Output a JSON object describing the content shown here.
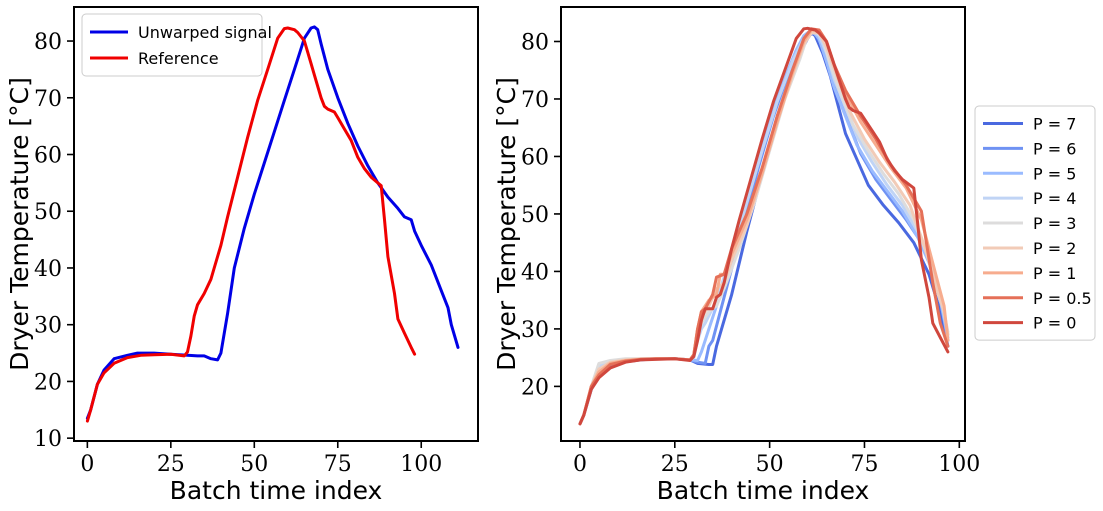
{
  "chart_data": [
    {
      "type": "line",
      "title": "",
      "xlabel": "Batch time index",
      "ylabel": "Dryer Temperature [°C]",
      "xlim": [
        -4,
        117
      ],
      "ylim": [
        9.5,
        86
      ],
      "xticks": [
        0,
        25,
        50,
        75,
        100
      ],
      "yticks": [
        10,
        20,
        30,
        40,
        50,
        60,
        70,
        80
      ],
      "grid": false,
      "legend_position": "top-left",
      "series": [
        {
          "name": "Unwarped signal",
          "color": "#0000e6",
          "x": [
            0,
            1,
            3,
            5,
            8,
            12,
            15,
            20,
            25,
            30,
            33,
            35,
            37,
            39,
            40,
            42,
            44,
            47,
            50,
            53,
            56,
            59,
            62,
            65,
            67,
            68,
            69,
            70,
            72,
            75,
            78,
            81,
            84,
            87,
            90,
            93,
            95,
            97,
            98,
            100,
            103,
            106,
            108,
            109,
            111
          ],
          "y": [
            13.5,
            15,
            19.5,
            22,
            24,
            24.6,
            25,
            25,
            24.8,
            24.6,
            24.5,
            24.5,
            24,
            23.8,
            25,
            32,
            40,
            47,
            53,
            58.5,
            64,
            69.5,
            75,
            80.5,
            82.3,
            82.5,
            82,
            79.5,
            75,
            70,
            65.5,
            61.5,
            58,
            55,
            52.5,
            50.5,
            49,
            48.5,
            46.5,
            44,
            40.5,
            36,
            33,
            30,
            26
          ]
        },
        {
          "name": "Reference",
          "color": "#f00000",
          "x": [
            0,
            1,
            3,
            5,
            8,
            12,
            16,
            20,
            25,
            29,
            30,
            31,
            32,
            33,
            35,
            37,
            38,
            40,
            42,
            45,
            48,
            51,
            54,
            57,
            59,
            60,
            62,
            63,
            65,
            67,
            68,
            70,
            71,
            72,
            74,
            75,
            77,
            79,
            81,
            83,
            85,
            87,
            88,
            89,
            90,
            92,
            93,
            95,
            97,
            98
          ],
          "y": [
            13,
            15,
            19.5,
            21.5,
            23.2,
            24.2,
            24.6,
            24.7,
            24.8,
            24.5,
            25.2,
            28,
            31.5,
            33.5,
            35.5,
            38,
            40,
            44,
            49,
            56,
            63,
            69.5,
            75,
            80.5,
            82.2,
            82.3,
            82,
            81.5,
            80,
            76,
            74,
            70,
            68.5,
            68,
            67.5,
            66.5,
            64.5,
            62.5,
            59.5,
            57.5,
            56,
            55,
            54.5,
            48.5,
            42,
            35.5,
            31,
            28.5,
            26,
            24.8
          ]
        }
      ]
    },
    {
      "type": "line",
      "title": "",
      "xlabel": "Batch time index",
      "ylabel": "Dryer Temperature [°C]",
      "xlim": [
        -5,
        101.5
      ],
      "ylim": [
        10.5,
        86
      ],
      "xticks": [
        0,
        25,
        50,
        75,
        100
      ],
      "yticks": [
        20,
        30,
        40,
        50,
        60,
        70,
        80
      ],
      "grid": false,
      "legend_position": "outside-right",
      "series": [
        {
          "name": "P = 7",
          "color": "#4a69e0",
          "x": [
            0,
            1,
            3,
            5,
            8,
            12,
            16,
            20,
            25,
            29,
            31,
            34,
            35,
            36,
            40,
            44,
            48,
            52,
            56,
            58,
            60,
            61,
            62,
            64,
            66,
            68,
            70,
            73,
            76,
            80,
            84,
            88,
            92,
            95,
            97
          ],
          "y": [
            13.5,
            15,
            19.5,
            22,
            23.5,
            24.3,
            24.6,
            24.8,
            24.8,
            24.6,
            24,
            23.8,
            23.8,
            27,
            36,
            47,
            57,
            67,
            74,
            78,
            80.5,
            81.5,
            81,
            78,
            74,
            69,
            64,
            59.5,
            55,
            51.5,
            48.5,
            45,
            39.5,
            33,
            27
          ]
        },
        {
          "name": "P = 6",
          "color": "#6f92f3",
          "x": [
            0,
            1,
            3,
            5,
            8,
            12,
            16,
            20,
            25,
            29,
            31,
            33,
            34,
            35,
            39,
            43,
            47,
            51,
            55,
            58,
            60,
            62,
            64,
            66,
            68,
            71,
            74,
            78,
            82,
            86,
            90,
            93,
            95,
            97
          ],
          "y": [
            13.5,
            15,
            19.5,
            22.5,
            23.8,
            24.4,
            24.7,
            24.8,
            24.8,
            24.6,
            24.2,
            24,
            27,
            28,
            38,
            48,
            58,
            67,
            74.5,
            79,
            81,
            81.5,
            79,
            75,
            70.5,
            65.5,
            60.5,
            56,
            52.5,
            49,
            45,
            40,
            35,
            28
          ]
        },
        {
          "name": "P = 5",
          "color": "#9abbff",
          "x": [
            0,
            1,
            3,
            5,
            8,
            12,
            16,
            20,
            25,
            29,
            31,
            32,
            33,
            34,
            37,
            41,
            45,
            49,
            53,
            57,
            59,
            61,
            63,
            65,
            67,
            70,
            73,
            77,
            81,
            85,
            89,
            93,
            95,
            97
          ],
          "y": [
            13.5,
            15,
            19.5,
            23,
            24,
            24.5,
            24.7,
            24.8,
            24.8,
            24.6,
            24.5,
            26,
            28,
            30,
            36,
            46,
            55,
            64,
            72,
            78.5,
            81,
            82,
            80.5,
            76.5,
            72,
            67,
            62,
            57.5,
            54,
            50.5,
            46,
            40,
            35,
            28.5
          ]
        },
        {
          "name": "P = 4",
          "color": "#c0d4f5",
          "x": [
            0,
            1,
            3,
            5,
            8,
            12,
            16,
            20,
            25,
            29,
            30,
            31,
            32,
            33,
            36,
            40,
            44,
            48,
            52,
            56,
            59,
            61,
            63,
            65,
            67,
            70,
            73,
            77,
            81,
            85,
            89,
            93,
            95,
            97
          ],
          "y": [
            13.5,
            15,
            19.5,
            23.5,
            24.3,
            24.6,
            24.8,
            24.8,
            24.8,
            24.6,
            25,
            28,
            30,
            31,
            35,
            43,
            52,
            61,
            69.5,
            76.5,
            80.5,
            82,
            81,
            78,
            73.5,
            68.5,
            63.5,
            59,
            55,
            51.5,
            47,
            41,
            36,
            29
          ]
        },
        {
          "name": "P = 3",
          "color": "#dddcdc",
          "x": [
            0,
            1,
            3,
            5,
            8,
            12,
            16,
            20,
            25,
            29,
            30,
            31,
            32,
            34,
            36,
            38,
            42,
            46,
            50,
            54,
            58,
            60,
            62,
            64,
            66,
            69,
            72,
            76,
            80,
            84,
            88,
            92,
            95,
            97
          ],
          "y": [
            13.5,
            15,
            20,
            24,
            24.5,
            24.8,
            24.8,
            24.8,
            24.8,
            24.6,
            25.5,
            29,
            31,
            33,
            34,
            37,
            44,
            52,
            61,
            70,
            77,
            81,
            82,
            80.5,
            76,
            70.5,
            65.5,
            61,
            57,
            53.5,
            49,
            42,
            36,
            29.5
          ]
        },
        {
          "name": "P = 2",
          "color": "#f2cbb7",
          "x": [
            0,
            1,
            3,
            5,
            8,
            12,
            16,
            20,
            25,
            29,
            30,
            31,
            32,
            34,
            36,
            38,
            40,
            44,
            48,
            52,
            56,
            59,
            61,
            63,
            65,
            68,
            71,
            75,
            79,
            83,
            87,
            91,
            94,
            96,
            97
          ],
          "y": [
            13.5,
            15,
            20,
            23,
            24.2,
            24.6,
            24.8,
            24.8,
            24.8,
            24.6,
            25.5,
            30,
            32,
            34,
            37,
            38,
            42,
            48,
            57,
            66,
            74,
            79.5,
            81.5,
            81.5,
            79,
            73.5,
            68,
            63,
            59,
            55.5,
            51.5,
            44,
            37,
            33,
            29
          ]
        },
        {
          "name": "P = 1",
          "color": "#f7ac8e",
          "x": [
            0,
            1,
            3,
            5,
            8,
            12,
            16,
            20,
            25,
            29,
            30,
            31,
            32,
            34,
            36,
            37,
            38,
            40,
            44,
            48,
            52,
            56,
            59,
            61,
            63,
            65,
            67,
            70,
            74,
            78,
            82,
            86,
            90,
            94,
            96,
            97
          ],
          "y": [
            13.5,
            15,
            20,
            22.5,
            24,
            24.5,
            24.7,
            24.8,
            24.8,
            24.6,
            25.5,
            30,
            33,
            35,
            36,
            39.5,
            39.5,
            43,
            49,
            57,
            66,
            74.5,
            80,
            82,
            82,
            80,
            76,
            71,
            66,
            62,
            58,
            54.5,
            49,
            39,
            34,
            28
          ]
        },
        {
          "name": "P = 0.5",
          "color": "#e57058",
          "x": [
            0,
            1,
            3,
            5,
            8,
            12,
            16,
            20,
            25,
            29,
            30,
            31,
            32,
            33,
            35,
            36,
            38,
            40,
            44,
            48,
            52,
            56,
            59,
            61,
            63,
            65,
            67,
            70,
            74,
            78,
            82,
            86,
            90,
            93,
            95,
            97
          ],
          "y": [
            13.5,
            15,
            20,
            22,
            23.8,
            24.4,
            24.7,
            24.8,
            24.8,
            24.6,
            25.5,
            30,
            33,
            33.5,
            36,
            39,
            39.5,
            44,
            50,
            58,
            67,
            75,
            80.5,
            82.2,
            82,
            80,
            76,
            71.5,
            67,
            63,
            58.5,
            55,
            50.5,
            38,
            31,
            27
          ]
        },
        {
          "name": "P = 0",
          "color": "#d0473d",
          "x": [
            0,
            1,
            3,
            5,
            8,
            12,
            16,
            20,
            25,
            29,
            30,
            31,
            32,
            33,
            35,
            36,
            37,
            38,
            40,
            42,
            45,
            48,
            51,
            54,
            57,
            59,
            60,
            62,
            63,
            65,
            67,
            68,
            70,
            71,
            72,
            74,
            75,
            77,
            79,
            81,
            83,
            85,
            87,
            88,
            89,
            90,
            92,
            93,
            95,
            97
          ],
          "y": [
            13.5,
            15,
            19.5,
            21.5,
            23.2,
            24.2,
            24.6,
            24.7,
            24.8,
            24.5,
            25.2,
            28,
            31.5,
            33.5,
            33.5,
            35.5,
            36,
            38,
            44,
            49,
            56,
            63,
            69.5,
            75,
            80.5,
            82.2,
            82.3,
            82,
            81.5,
            80,
            76,
            74,
            70,
            68.5,
            68,
            67.5,
            66.5,
            64.5,
            62.5,
            59.5,
            57.5,
            56,
            55,
            54.5,
            48.5,
            42,
            35.5,
            31,
            28.5,
            26
          ]
        }
      ]
    }
  ]
}
